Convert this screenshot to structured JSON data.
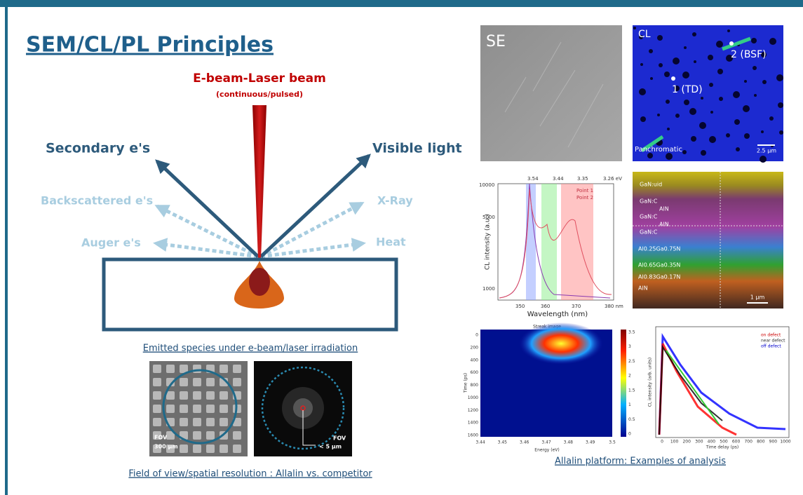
{
  "title": "SEM/CL/PL Principles",
  "diagram": {
    "beam_label": "E-beam-Laser beam",
    "beam_sublabel": "(continuous/pulsed)",
    "emissions": [
      "Secondary e's",
      "Visible light",
      "Backscattered e's",
      "X-Ray",
      "Auger e's",
      "Heat"
    ],
    "caption": "Emitted species under e-beam/laser irradiation"
  },
  "fov": {
    "left_label": "FOV",
    "left_scale": "300 µm",
    "right_label": "FOV",
    "right_scale": "< 5 µm",
    "caption": "Field of view/spatial resolution : Allalin vs. competitor"
  },
  "analysis": {
    "se_label": "SE",
    "cl": {
      "label": "CL",
      "points": [
        "1 (TD)",
        "2 (BSF)"
      ],
      "mode": "Panchromatic",
      "scale": "2.5 µm"
    },
    "spectrum": {
      "x_label": "Wavelength (nm)",
      "y_label": "CL intensity (a.u.)",
      "x_ticks": [
        "350",
        "360",
        "370",
        "380 nm"
      ],
      "top_ticks": [
        "3.54",
        "3.44",
        "3.35",
        "3.26 eV"
      ],
      "y_ticks": [
        "10000",
        "5000",
        "1000"
      ],
      "legend": [
        "Point 1",
        "Point 2"
      ]
    },
    "layers": {
      "names": [
        "GaN:uid",
        "GaN:C",
        "AlN",
        "GaN:C",
        "AlN",
        "GaN:C",
        "Al0.25Ga0.75N",
        "Al0.65Ga0.35N",
        "Al0.83Ga0.17N",
        "AlN"
      ],
      "scale": "1 µm"
    },
    "streak": {
      "title": "Streak image",
      "x_label": "Energy (eV)",
      "y_label": "Time (ps)",
      "x_ticks": [
        "3.44",
        "3.45",
        "3.46",
        "3.47",
        "3.48",
        "3.49",
        "3.5"
      ],
      "y_ticks": [
        "0",
        "200",
        "400",
        "600",
        "800",
        "1000",
        "1200",
        "1400",
        "1600"
      ],
      "colorbar_ticks": [
        "3.5",
        "3",
        "2.5",
        "2",
        "1.5",
        "1",
        "0.5",
        "0"
      ]
    },
    "decay": {
      "x_label": "Time delay (ps)",
      "y_label": "CL intensity (arb. units)",
      "legend": [
        "on defect",
        "near defect",
        "off defect"
      ],
      "x_ticks": [
        "0",
        "100",
        "200",
        "300",
        "400",
        "500",
        "600",
        "700",
        "800",
        "900",
        "1000"
      ]
    },
    "caption": "Allalin platform: Examples of analysis"
  }
}
